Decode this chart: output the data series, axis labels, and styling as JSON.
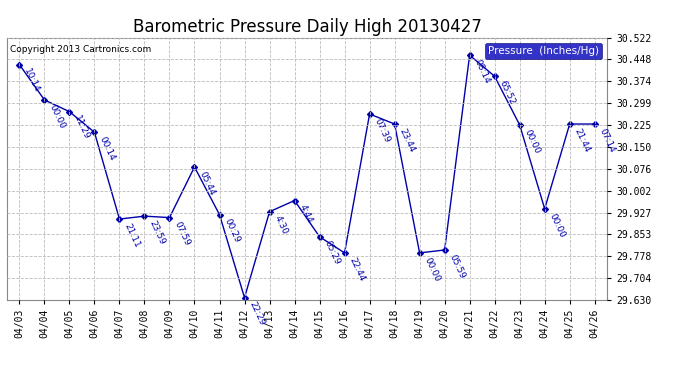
{
  "title": "Barometric Pressure Daily High 20130427",
  "copyright": "Copyright 2013 Cartronics.com",
  "legend_label": "Pressure  (Inches/Hg)",
  "ylim": [
    29.63,
    30.522
  ],
  "yticks": [
    29.63,
    29.704,
    29.778,
    29.853,
    29.927,
    30.002,
    30.076,
    30.15,
    30.225,
    30.299,
    30.374,
    30.448,
    30.522
  ],
  "dates": [
    "04/03",
    "04/04",
    "04/05",
    "04/06",
    "04/07",
    "04/08",
    "04/09",
    "04/10",
    "04/11",
    "04/12",
    "04/13",
    "04/14",
    "04/15",
    "04/16",
    "04/17",
    "04/18",
    "04/19",
    "04/20",
    "04/21",
    "04/22",
    "04/23",
    "04/24",
    "04/25",
    "04/26"
  ],
  "values": [
    30.43,
    30.31,
    30.27,
    30.2,
    29.905,
    29.915,
    29.91,
    30.082,
    29.92,
    29.638,
    29.93,
    29.968,
    29.845,
    29.79,
    30.262,
    30.228,
    29.79,
    29.8,
    30.462,
    30.39,
    30.225,
    29.94,
    30.228,
    30.228
  ],
  "times": [
    "10:14",
    "00:00",
    "11:29",
    "00:14",
    "21:11",
    "23:59",
    "07:59",
    "05:44",
    "00:29",
    "22:29",
    "4:30",
    "4:44",
    "05:29",
    "22:44",
    "07:39",
    "23:44",
    "00:00",
    "05:59",
    "08:14",
    "65:52",
    "00:00",
    "00:00",
    "21:44",
    "07:14"
  ],
  "line_color": "#0000AA",
  "marker_size": 3,
  "annotation_color": "#0000AA",
  "annotation_fontsize": 6.5,
  "grid_color": "#BBBBBB",
  "bg_color": "#FFFFFF",
  "title_fontsize": 12,
  "legend_bg": "#0000BB",
  "legend_fg": "#FFFFFF"
}
